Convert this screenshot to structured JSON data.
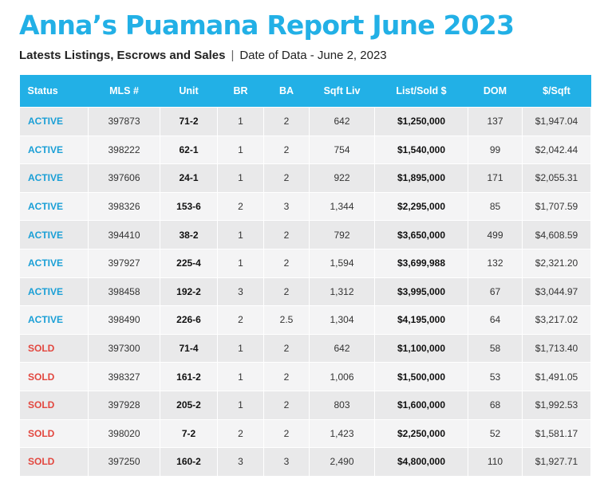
{
  "title": "Anna’s Puamana Report June 2023",
  "subtitle": {
    "left": "Latests Listings, Escrows and Sales",
    "separator": "|",
    "right": "Date of Data - June 2, 2023"
  },
  "colors": {
    "accent": "#22b0e6",
    "active": "#1a9fd6",
    "sold": "#e2473f"
  },
  "columns": [
    "Status",
    "MLS #",
    "Unit",
    "BR",
    "BA",
    "Sqft Liv",
    "List/Sold $",
    "DOM",
    "$/Sqft"
  ],
  "rows": [
    {
      "status": "ACTIVE",
      "mls": "397873",
      "unit": "71-2",
      "br": "1",
      "ba": "2",
      "sqft": "642",
      "price": "$1,250,000",
      "dom": "137",
      "psf": "$1,947.04"
    },
    {
      "status": "ACTIVE",
      "mls": "398222",
      "unit": "62-1",
      "br": "1",
      "ba": "2",
      "sqft": "754",
      "price": "$1,540,000",
      "dom": "99",
      "psf": "$2,042.44"
    },
    {
      "status": "ACTIVE",
      "mls": "397606",
      "unit": "24-1",
      "br": "1",
      "ba": "2",
      "sqft": "922",
      "price": "$1,895,000",
      "dom": "171",
      "psf": "$2,055.31"
    },
    {
      "status": "ACTIVE",
      "mls": "398326",
      "unit": "153-6",
      "br": "2",
      "ba": "3",
      "sqft": "1,344",
      "price": "$2,295,000",
      "dom": "85",
      "psf": "$1,707.59"
    },
    {
      "status": "ACTIVE",
      "mls": "394410",
      "unit": "38-2",
      "br": "1",
      "ba": "2",
      "sqft": "792",
      "price": "$3,650,000",
      "dom": "499",
      "psf": "$4,608.59"
    },
    {
      "status": "ACTIVE",
      "mls": "397927",
      "unit": "225-4",
      "br": "1",
      "ba": "2",
      "sqft": "1,594",
      "price": "$3,699,988",
      "dom": "132",
      "psf": "$2,321.20"
    },
    {
      "status": "ACTIVE",
      "mls": "398458",
      "unit": "192-2",
      "br": "3",
      "ba": "2",
      "sqft": "1,312",
      "price": "$3,995,000",
      "dom": "67",
      "psf": "$3,044.97"
    },
    {
      "status": "ACTIVE",
      "mls": "398490",
      "unit": "226-6",
      "br": "2",
      "ba": "2.5",
      "sqft": "1,304",
      "price": "$4,195,000",
      "dom": "64",
      "psf": "$3,217.02"
    },
    {
      "status": "SOLD",
      "mls": "397300",
      "unit": "71-4",
      "br": "1",
      "ba": "2",
      "sqft": "642",
      "price": "$1,100,000",
      "dom": "58",
      "psf": "$1,713.40"
    },
    {
      "status": "SOLD",
      "mls": "398327",
      "unit": "161-2",
      "br": "1",
      "ba": "2",
      "sqft": "1,006",
      "price": "$1,500,000",
      "dom": "53",
      "psf": "$1,491.05"
    },
    {
      "status": "SOLD",
      "mls": "397928",
      "unit": "205-2",
      "br": "1",
      "ba": "2",
      "sqft": "803",
      "price": "$1,600,000",
      "dom": "68",
      "psf": "$1,992.53"
    },
    {
      "status": "SOLD",
      "mls": "398020",
      "unit": "7-2",
      "br": "2",
      "ba": "2",
      "sqft": "1,423",
      "price": "$2,250,000",
      "dom": "52",
      "psf": "$1,581.17"
    },
    {
      "status": "SOLD",
      "mls": "397250",
      "unit": "160-2",
      "br": "3",
      "ba": "3",
      "sqft": "2,490",
      "price": "$4,800,000",
      "dom": "110",
      "psf": "$1,927.71"
    }
  ]
}
